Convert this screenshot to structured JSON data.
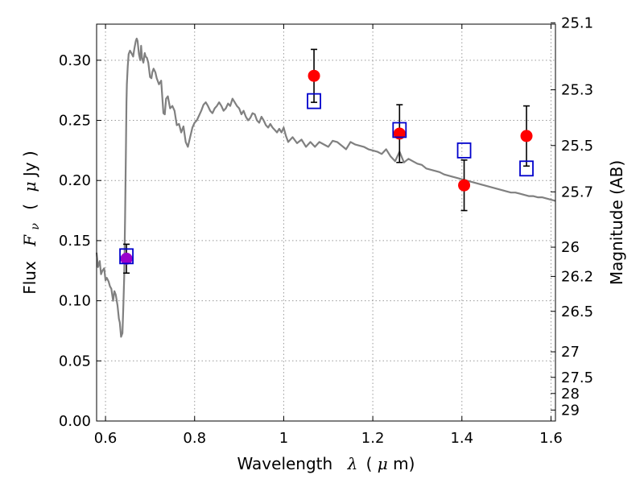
{
  "chart_data": {
    "type": "scatter",
    "xlabel": "Wavelength",
    "xlabel_symbol": "λ",
    "xlabel_unit_open": "(",
    "xlabel_unit_mu": "μ",
    "xlabel_unit_rest": "m)",
    "ylabel": "Flux",
    "ylabel_symbol": "F",
    "ylabel_sub": "ν",
    "ylabel_unit_open": "(",
    "ylabel_unit_mu": "μ",
    "ylabel_unit_rest": "Jy )",
    "y2label": "Magnitude (AB)",
    "xlim": [
      0.58,
      1.61
    ],
    "ylim": [
      0.0,
      0.33
    ],
    "grid": true,
    "x_ticks": [
      0.6,
      0.8,
      1.0,
      1.2,
      1.4,
      1.6
    ],
    "x_tick_labels": [
      "0.6",
      "0.8",
      "1",
      "1.2",
      "1.4",
      "1.6"
    ],
    "y_ticks": [
      0.0,
      0.05,
      0.1,
      0.15,
      0.2,
      0.25,
      0.3
    ],
    "y_tick_labels": [
      "0.00",
      "0.05",
      "0.10",
      "0.15",
      "0.20",
      "0.25",
      "0.30"
    ],
    "y2_ticks": [
      25.1,
      25.3,
      25.5,
      25.7,
      26,
      26.2,
      26.5,
      27,
      27.5,
      28,
      29
    ],
    "y2_tick_labels": [
      "25.1",
      "25.3",
      "25.5",
      "25.7",
      "26",
      "26.2",
      "26.5",
      "27",
      "27.5",
      "28",
      "29"
    ],
    "colors": {
      "observed": "#ff0000",
      "model_box": "#0000cc",
      "sed_line": "#808080",
      "grid": "#999999",
      "errorbar": "#000000",
      "blend": "#9900cc"
    },
    "series": [
      {
        "type": "line",
        "x": [
          0.58,
          0.583,
          0.587,
          0.59,
          0.593,
          0.597,
          0.6,
          0.603,
          0.607,
          0.61,
          0.613,
          0.617,
          0.62,
          0.623,
          0.627,
          0.63,
          0.632,
          0.635,
          0.638,
          0.64,
          0.642,
          0.644,
          0.646,
          0.647,
          0.648,
          0.65,
          0.652,
          0.655,
          0.658,
          0.662,
          0.665,
          0.668,
          0.67,
          0.672,
          0.675,
          0.678,
          0.68,
          0.682,
          0.685,
          0.688,
          0.69,
          0.693,
          0.696,
          0.7,
          0.703,
          0.705,
          0.708,
          0.712,
          0.715,
          0.72,
          0.725,
          0.73,
          0.733,
          0.736,
          0.74,
          0.745,
          0.75,
          0.755,
          0.76,
          0.765,
          0.77,
          0.775,
          0.78,
          0.785,
          0.79,
          0.795,
          0.8,
          0.805,
          0.81,
          0.815,
          0.82,
          0.825,
          0.83,
          0.835,
          0.84,
          0.845,
          0.85,
          0.855,
          0.86,
          0.865,
          0.87,
          0.875,
          0.88,
          0.885,
          0.89,
          0.895,
          0.9,
          0.905,
          0.91,
          0.915,
          0.92,
          0.925,
          0.93,
          0.935,
          0.94,
          0.945,
          0.95,
          0.955,
          0.96,
          0.965,
          0.97,
          0.975,
          0.98,
          0.985,
          0.99,
          0.995,
          1.0,
          1.005,
          1.01,
          1.02,
          1.03,
          1.04,
          1.05,
          1.06,
          1.07,
          1.08,
          1.09,
          1.1,
          1.11,
          1.12,
          1.13,
          1.14,
          1.15,
          1.16,
          1.17,
          1.18,
          1.19,
          1.2,
          1.21,
          1.22,
          1.23,
          1.24,
          1.25,
          1.26,
          1.27,
          1.28,
          1.29,
          1.3,
          1.31,
          1.32,
          1.33,
          1.34,
          1.35,
          1.36,
          1.37,
          1.38,
          1.39,
          1.4,
          1.41,
          1.42,
          1.43,
          1.44,
          1.45,
          1.46,
          1.47,
          1.48,
          1.49,
          1.5,
          1.51,
          1.52,
          1.53,
          1.54,
          1.55,
          1.56,
          1.57,
          1.58,
          1.59,
          1.6,
          1.61
        ],
        "y": [
          0.14,
          0.128,
          0.133,
          0.122,
          0.125,
          0.127,
          0.117,
          0.119,
          0.116,
          0.112,
          0.11,
          0.1,
          0.108,
          0.105,
          0.096,
          0.085,
          0.082,
          0.07,
          0.073,
          0.095,
          0.12,
          0.17,
          0.23,
          0.265,
          0.28,
          0.295,
          0.305,
          0.308,
          0.306,
          0.303,
          0.31,
          0.316,
          0.318,
          0.316,
          0.305,
          0.3,
          0.312,
          0.302,
          0.298,
          0.306,
          0.303,
          0.302,
          0.298,
          0.286,
          0.285,
          0.29,
          0.293,
          0.29,
          0.285,
          0.28,
          0.283,
          0.256,
          0.255,
          0.268,
          0.27,
          0.26,
          0.262,
          0.258,
          0.246,
          0.247,
          0.24,
          0.245,
          0.232,
          0.228,
          0.236,
          0.244,
          0.248,
          0.25,
          0.254,
          0.258,
          0.263,
          0.265,
          0.262,
          0.258,
          0.256,
          0.26,
          0.262,
          0.265,
          0.262,
          0.258,
          0.26,
          0.264,
          0.262,
          0.268,
          0.265,
          0.262,
          0.26,
          0.255,
          0.258,
          0.253,
          0.25,
          0.252,
          0.256,
          0.255,
          0.25,
          0.248,
          0.253,
          0.25,
          0.246,
          0.244,
          0.247,
          0.244,
          0.242,
          0.24,
          0.243,
          0.24,
          0.244,
          0.237,
          0.232,
          0.236,
          0.231,
          0.234,
          0.228,
          0.232,
          0.228,
          0.232,
          0.23,
          0.228,
          0.233,
          0.232,
          0.229,
          0.226,
          0.232,
          0.23,
          0.229,
          0.228,
          0.226,
          0.225,
          0.224,
          0.222,
          0.226,
          0.22,
          0.216,
          0.224,
          0.215,
          0.218,
          0.216,
          0.214,
          0.213,
          0.21,
          0.209,
          0.208,
          0.207,
          0.205,
          0.204,
          0.203,
          0.202,
          0.201,
          0.2,
          0.199,
          0.198,
          0.197,
          0.196,
          0.195,
          0.194,
          0.193,
          0.192,
          0.191,
          0.19,
          0.19,
          0.189,
          0.188,
          0.187,
          0.187,
          0.186,
          0.186,
          0.185,
          0.184,
          0.183
        ]
      },
      {
        "type": "scatter",
        "x": [
          0.647,
          1.068,
          1.26,
          1.405,
          1.545
        ],
        "y": [
          0.135,
          0.287,
          0.239,
          0.196,
          0.237
        ],
        "err_low": [
          0.012,
          0.022,
          0.024,
          0.021,
          0.025
        ],
        "err_high": [
          0.012,
          0.022,
          0.024,
          0.021,
          0.025
        ]
      },
      {
        "type": "scatter",
        "x": [
          0.647,
          1.068,
          1.26,
          1.405,
          1.545
        ],
        "y": [
          0.137,
          0.266,
          0.242,
          0.225,
          0.21
        ]
      }
    ]
  }
}
